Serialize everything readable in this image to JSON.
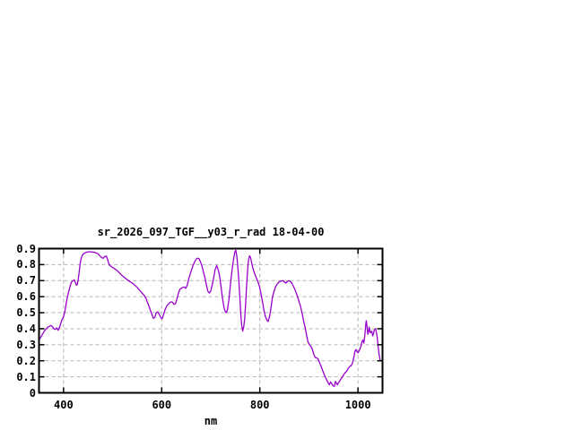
{
  "window": {
    "background": "#ffffff"
  },
  "colors": {
    "curve": "#9900cc",
    "grid": "#b3b3b3",
    "border": "#000000",
    "text": "#000000"
  },
  "chart_data": {
    "type": "line",
    "title": "sr_2026_097_TGF__y03_r_rad 18-04-00",
    "xlabel": "nm",
    "ylabel": "",
    "xlim": [
      350,
      1050
    ],
    "ylim": [
      0,
      0.9
    ],
    "x_ticks": [
      400,
      600,
      800,
      1000
    ],
    "x_tick_labels": [
      "400",
      "600",
      "800",
      "1000"
    ],
    "y_ticks": [
      0,
      0.1,
      0.2,
      0.3,
      0.4,
      0.5,
      0.6,
      0.7,
      0.8,
      0.9
    ],
    "y_tick_labels": [
      "0",
      "0.1",
      "0.2",
      "0.3",
      "0.4",
      "0.5",
      "0.6",
      "0.7",
      "0.8",
      "0.9"
    ],
    "grid": "dashed",
    "legend": "none",
    "series": [
      {
        "name": "sr_2026_097_TGF__y03_r_rad",
        "color": "#9900cc",
        "points": [
          [
            350,
            0.33
          ],
          [
            353,
            0.345
          ],
          [
            356,
            0.36
          ],
          [
            359,
            0.375
          ],
          [
            362,
            0.39
          ],
          [
            365,
            0.4
          ],
          [
            368,
            0.41
          ],
          [
            371,
            0.415
          ],
          [
            374,
            0.42
          ],
          [
            377,
            0.415
          ],
          [
            380,
            0.4
          ],
          [
            383,
            0.395
          ],
          [
            386,
            0.405
          ],
          [
            389,
            0.39
          ],
          [
            392,
            0.41
          ],
          [
            395,
            0.44
          ],
          [
            398,
            0.465
          ],
          [
            400,
            0.475
          ],
          [
            402,
            0.5
          ],
          [
            404,
            0.53
          ],
          [
            406,
            0.565
          ],
          [
            408,
            0.6
          ],
          [
            410,
            0.625
          ],
          [
            412,
            0.65
          ],
          [
            414,
            0.67
          ],
          [
            416,
            0.69
          ],
          [
            419,
            0.7
          ],
          [
            422,
            0.705
          ],
          [
            424,
            0.69
          ],
          [
            426,
            0.672
          ],
          [
            428,
            0.675
          ],
          [
            430,
            0.71
          ],
          [
            432,
            0.76
          ],
          [
            434,
            0.81
          ],
          [
            436,
            0.84
          ],
          [
            438,
            0.856
          ],
          [
            440,
            0.865
          ],
          [
            443,
            0.872
          ],
          [
            446,
            0.876
          ],
          [
            450,
            0.88
          ],
          [
            454,
            0.88
          ],
          [
            458,
            0.879
          ],
          [
            462,
            0.877
          ],
          [
            466,
            0.873
          ],
          [
            470,
            0.868
          ],
          [
            474,
            0.855
          ],
          [
            478,
            0.843
          ],
          [
            481,
            0.84
          ],
          [
            484,
            0.85
          ],
          [
            487,
            0.854
          ],
          [
            490,
            0.83
          ],
          [
            493,
            0.8
          ],
          [
            496,
            0.79
          ],
          [
            500,
            0.782
          ],
          [
            504,
            0.775
          ],
          [
            508,
            0.765
          ],
          [
            512,
            0.755
          ],
          [
            516,
            0.742
          ],
          [
            520,
            0.73
          ],
          [
            525,
            0.718
          ],
          [
            530,
            0.705
          ],
          [
            535,
            0.695
          ],
          [
            540,
            0.685
          ],
          [
            545,
            0.672
          ],
          [
            550,
            0.658
          ],
          [
            555,
            0.64
          ],
          [
            560,
            0.623
          ],
          [
            565,
            0.605
          ],
          [
            568,
            0.59
          ],
          [
            571,
            0.565
          ],
          [
            574,
            0.54
          ],
          [
            577,
            0.515
          ],
          [
            580,
            0.49
          ],
          [
            583,
            0.465
          ],
          [
            586,
            0.47
          ],
          [
            589,
            0.5
          ],
          [
            592,
            0.505
          ],
          [
            595,
            0.49
          ],
          [
            598,
            0.47
          ],
          [
            601,
            0.462
          ],
          [
            604,
            0.49
          ],
          [
            607,
            0.52
          ],
          [
            610,
            0.54
          ],
          [
            613,
            0.552
          ],
          [
            616,
            0.56
          ],
          [
            619,
            0.568
          ],
          [
            622,
            0.565
          ],
          [
            625,
            0.552
          ],
          [
            628,
            0.555
          ],
          [
            631,
            0.585
          ],
          [
            634,
            0.62
          ],
          [
            637,
            0.645
          ],
          [
            640,
            0.653
          ],
          [
            643,
            0.658
          ],
          [
            646,
            0.66
          ],
          [
            649,
            0.652
          ],
          [
            652,
            0.67
          ],
          [
            655,
            0.71
          ],
          [
            658,
            0.74
          ],
          [
            661,
            0.77
          ],
          [
            664,
            0.795
          ],
          [
            667,
            0.815
          ],
          [
            670,
            0.833
          ],
          [
            673,
            0.84
          ],
          [
            676,
            0.838
          ],
          [
            679,
            0.818
          ],
          [
            682,
            0.79
          ],
          [
            685,
            0.755
          ],
          [
            688,
            0.72
          ],
          [
            691,
            0.675
          ],
          [
            694,
            0.635
          ],
          [
            697,
            0.623
          ],
          [
            700,
            0.635
          ],
          [
            703,
            0.672
          ],
          [
            706,
            0.72
          ],
          [
            709,
            0.77
          ],
          [
            712,
            0.795
          ],
          [
            715,
            0.77
          ],
          [
            718,
            0.73
          ],
          [
            721,
            0.66
          ],
          [
            724,
            0.59
          ],
          [
            727,
            0.53
          ],
          [
            730,
            0.505
          ],
          [
            732,
            0.5
          ],
          [
            734,
            0.52
          ],
          [
            737,
            0.58
          ],
          [
            740,
            0.675
          ],
          [
            743,
            0.755
          ],
          [
            746,
            0.825
          ],
          [
            749,
            0.878
          ],
          [
            751,
            0.89
          ],
          [
            753,
            0.855
          ],
          [
            755,
            0.79
          ],
          [
            757,
            0.71
          ],
          [
            759,
            0.61
          ],
          [
            761,
            0.5
          ],
          [
            763,
            0.42
          ],
          [
            765,
            0.385
          ],
          [
            767,
            0.41
          ],
          [
            769,
            0.46
          ],
          [
            771,
            0.55
          ],
          [
            773,
            0.66
          ],
          [
            775,
            0.76
          ],
          [
            777,
            0.83
          ],
          [
            779,
            0.855
          ],
          [
            781,
            0.845
          ],
          [
            784,
            0.8
          ],
          [
            787,
            0.765
          ],
          [
            790,
            0.74
          ],
          [
            793,
            0.715
          ],
          [
            796,
            0.695
          ],
          [
            799,
            0.665
          ],
          [
            802,
            0.625
          ],
          [
            805,
            0.575
          ],
          [
            808,
            0.52
          ],
          [
            811,
            0.48
          ],
          [
            814,
            0.455
          ],
          [
            817,
            0.445
          ],
          [
            820,
            0.48
          ],
          [
            823,
            0.535
          ],
          [
            826,
            0.6
          ],
          [
            829,
            0.635
          ],
          [
            832,
            0.66
          ],
          [
            835,
            0.678
          ],
          [
            838,
            0.688
          ],
          [
            841,
            0.695
          ],
          [
            844,
            0.698
          ],
          [
            847,
            0.7
          ],
          [
            850,
            0.692
          ],
          [
            853,
            0.685
          ],
          [
            856,
            0.695
          ],
          [
            859,
            0.7
          ],
          [
            862,
            0.695
          ],
          [
            865,
            0.685
          ],
          [
            868,
            0.668
          ],
          [
            871,
            0.648
          ],
          [
            874,
            0.625
          ],
          [
            877,
            0.598
          ],
          [
            880,
            0.568
          ],
          [
            883,
            0.54
          ],
          [
            886,
            0.497
          ],
          [
            889,
            0.452
          ],
          [
            892,
            0.41
          ],
          [
            895,
            0.365
          ],
          [
            898,
            0.32
          ],
          [
            901,
            0.3
          ],
          [
            904,
            0.29
          ],
          [
            907,
            0.27
          ],
          [
            910,
            0.24
          ],
          [
            913,
            0.22
          ],
          [
            916,
            0.218
          ],
          [
            919,
            0.21
          ],
          [
            922,
            0.185
          ],
          [
            925,
            0.165
          ],
          [
            928,
            0.14
          ],
          [
            931,
            0.115
          ],
          [
            934,
            0.095
          ],
          [
            937,
            0.075
          ],
          [
            940,
            0.058
          ],
          [
            942,
            0.05
          ],
          [
            944,
            0.068
          ],
          [
            946,
            0.06
          ],
          [
            948,
            0.05
          ],
          [
            950,
            0.042
          ],
          [
            952,
            0.04
          ],
          [
            954,
            0.072
          ],
          [
            956,
            0.06
          ],
          [
            958,
            0.05
          ],
          [
            960,
            0.062
          ],
          [
            962,
            0.07
          ],
          [
            964,
            0.08
          ],
          [
            966,
            0.09
          ],
          [
            968,
            0.096
          ],
          [
            970,
            0.108
          ],
          [
            972,
            0.118
          ],
          [
            974,
            0.125
          ],
          [
            976,
            0.132
          ],
          [
            978,
            0.14
          ],
          [
            980,
            0.152
          ],
          [
            982,
            0.16
          ],
          [
            984,
            0.165
          ],
          [
            986,
            0.17
          ],
          [
            988,
            0.18
          ],
          [
            990,
            0.2
          ],
          [
            992,
            0.23
          ],
          [
            994,
            0.262
          ],
          [
            996,
            0.27
          ],
          [
            998,
            0.258
          ],
          [
            1000,
            0.25
          ],
          [
            1002,
            0.26
          ],
          [
            1004,
            0.272
          ],
          [
            1006,
            0.29
          ],
          [
            1008,
            0.318
          ],
          [
            1010,
            0.33
          ],
          [
            1012,
            0.31
          ],
          [
            1014,
            0.36
          ],
          [
            1016,
            0.43
          ],
          [
            1017,
            0.45
          ],
          [
            1019,
            0.4
          ],
          [
            1020,
            0.365
          ],
          [
            1022,
            0.39
          ],
          [
            1023,
            0.41
          ],
          [
            1025,
            0.375
          ],
          [
            1027,
            0.38
          ],
          [
            1028,
            0.385
          ],
          [
            1030,
            0.355
          ],
          [
            1032,
            0.375
          ],
          [
            1033,
            0.39
          ],
          [
            1035,
            0.398
          ],
          [
            1036,
            0.4
          ],
          [
            1038,
            0.372
          ],
          [
            1039,
            0.35
          ],
          [
            1041,
            0.29
          ],
          [
            1043,
            0.24
          ],
          [
            1045,
            0.205
          ],
          [
            1046,
            0.2
          ]
        ]
      }
    ]
  }
}
